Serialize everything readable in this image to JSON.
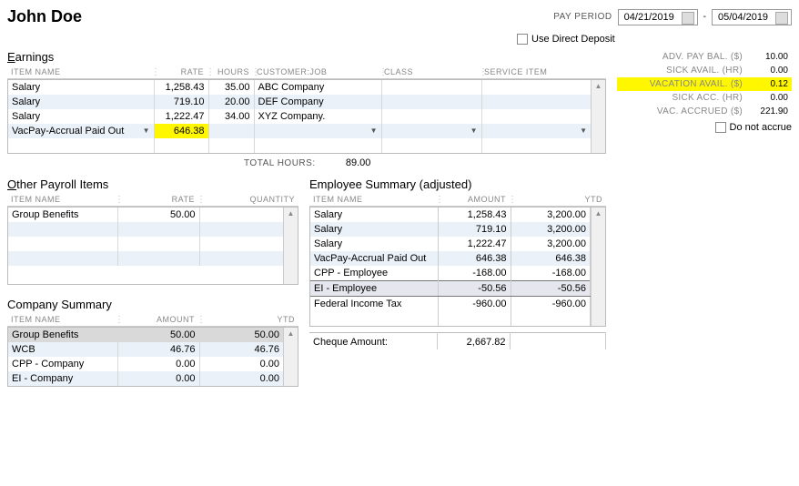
{
  "employee_name": "John Doe",
  "pay_period_label": "PAY PERIOD",
  "period_start": "04/21/2019",
  "period_end": "05/04/2019",
  "use_direct_deposit_label": "Use Direct Deposit",
  "earnings": {
    "title_u": "E",
    "title_rest": "arnings",
    "headers": {
      "item": "ITEM NAME",
      "rate": "RATE",
      "hours": "HOURS",
      "job": "CUSTOMER:JOB",
      "class": "CLASS",
      "service": "SERVICE ITEM"
    },
    "rows": [
      {
        "item": "Salary",
        "rate": "1,258.43",
        "hours": "35.00",
        "job": "ABC Company"
      },
      {
        "item": "Salary",
        "rate": "719.10",
        "hours": "20.00",
        "job": "DEF Company"
      },
      {
        "item": "Salary",
        "rate": "1,222.47",
        "hours": "34.00",
        "job": "XYZ Company."
      },
      {
        "item": "VacPay-Accrual Paid Out",
        "rate": "646.38",
        "hours": "",
        "job": ""
      }
    ],
    "total_hours_label": "TOTAL HOURS:",
    "total_hours": "89.00"
  },
  "side": {
    "rows": [
      {
        "label": "ADV. PAY BAL. ($)",
        "val": "10.00"
      },
      {
        "label": "SICK AVAIL. (HR)",
        "val": "0.00"
      },
      {
        "label": "VACATION AVAIL. ($)",
        "val": "0.12",
        "hl": true
      },
      {
        "label": "SICK ACC. (HR)",
        "val": "0.00"
      },
      {
        "label": "VAC. ACCRUED ($)",
        "val": "221.90"
      }
    ],
    "accrue_label": "Do not accrue"
  },
  "other": {
    "title_u": "O",
    "title_rest": "ther Payroll Items",
    "headers": {
      "item": "ITEM NAME",
      "rate": "RATE",
      "qty": "QUANTITY"
    },
    "rows": [
      {
        "item": "Group Benefits",
        "rate": "50.00",
        "qty": ""
      }
    ]
  },
  "emp_summary": {
    "title": "Employee Summary (adjusted)",
    "headers": {
      "item": "ITEM NAME",
      "amount": "AMOUNT",
      "ytd": "YTD"
    },
    "rows": [
      {
        "item": "Salary",
        "amount": "1,258.43",
        "ytd": "3,200.00"
      },
      {
        "item": "Salary",
        "amount": "719.10",
        "ytd": "3,200.00"
      },
      {
        "item": "Salary",
        "amount": "1,222.47",
        "ytd": "3,200.00"
      },
      {
        "item": "VacPay-Accrual Paid Out",
        "amount": "646.38",
        "ytd": "646.38"
      },
      {
        "item": "CPP - Employee",
        "amount": "-168.00",
        "ytd": "-168.00"
      },
      {
        "item": "EI - Employee",
        "amount": "-50.56",
        "ytd": "-50.56",
        "sel": true
      },
      {
        "item": "Federal Income Tax",
        "amount": "-960.00",
        "ytd": "-960.00"
      }
    ],
    "cheque_label": "Cheque Amount:",
    "cheque_amount": "2,667.82"
  },
  "company": {
    "title": "Company Summary",
    "headers": {
      "item": "ITEM NAME",
      "amount": "AMOUNT",
      "ytd": "YTD"
    },
    "rows": [
      {
        "item": "Group Benefits",
        "amount": "50.00",
        "ytd": "50.00",
        "dark": true
      },
      {
        "item": "WCB",
        "amount": "46.76",
        "ytd": "46.76"
      },
      {
        "item": "CPP - Company",
        "amount": "0.00",
        "ytd": "0.00"
      },
      {
        "item": "EI - Company",
        "amount": "0.00",
        "ytd": "0.00"
      }
    ]
  }
}
